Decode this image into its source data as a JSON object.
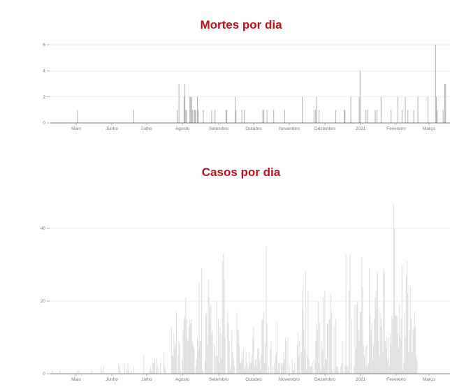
{
  "colors": {
    "title": "#b5121b",
    "deaths_bar": "#b3b3b3",
    "cases_bar": "#dedede",
    "grid": "#e6e6e6"
  },
  "chart_data": [
    {
      "type": "bar",
      "title": "Mortes por dia",
      "x_tick_labels": [
        "Maio",
        "Junho",
        "Julho",
        "Agosto",
        "Setembro",
        "Outubro",
        "Novembro",
        "Dezembro",
        "2021",
        "Fevereiro",
        "Março"
      ],
      "y_ticks": [
        0,
        2,
        4,
        6
      ],
      "ylim": [
        0,
        6
      ],
      "grid": true,
      "values": [
        0,
        0,
        0,
        0,
        0,
        0,
        0,
        0,
        0,
        0,
        0,
        0,
        0,
        0,
        0,
        0,
        0,
        0,
        0,
        0,
        0,
        0,
        0,
        0,
        0,
        0,
        0,
        0,
        0,
        0,
        0,
        0,
        1,
        0,
        0,
        0,
        0,
        0,
        0,
        0,
        0,
        0,
        0,
        0,
        0,
        0,
        0,
        0,
        0,
        0,
        0,
        0,
        0,
        0,
        0,
        0,
        0,
        0,
        0,
        0,
        0,
        0,
        0,
        0,
        0,
        0,
        0,
        0,
        0,
        0,
        0,
        0,
        0,
        0,
        0,
        0,
        0,
        0,
        0,
        0,
        0,
        0,
        0,
        0,
        0,
        0,
        0,
        0,
        0,
        0,
        0,
        0,
        0,
        0,
        0,
        0,
        0,
        0,
        0,
        1,
        0,
        0,
        0,
        0,
        0,
        0,
        0,
        0,
        0,
        0,
        0,
        0,
        0,
        0,
        0,
        0,
        0,
        0,
        0,
        0,
        0,
        0,
        0,
        0,
        0,
        0,
        0,
        0,
        0,
        0,
        0,
        0,
        0,
        0,
        0,
        0,
        0,
        0,
        0,
        0,
        0,
        0,
        0,
        0,
        0,
        0,
        0,
        0,
        0,
        0,
        0,
        1,
        0,
        3,
        0,
        0,
        0,
        0,
        0,
        2,
        3,
        1,
        1,
        0,
        0,
        0,
        2,
        2,
        2,
        1,
        0,
        1,
        1,
        1,
        0,
        2,
        1,
        0,
        0,
        0,
        0,
        0,
        1,
        0,
        0,
        0,
        0,
        0,
        0,
        0,
        0,
        0,
        1,
        0,
        0,
        0,
        1,
        0,
        0,
        0,
        0,
        0,
        0,
        0,
        0,
        0,
        0,
        0,
        0,
        1,
        1,
        0,
        0,
        0,
        0,
        0,
        0,
        0,
        0,
        0,
        2,
        1,
        0,
        0,
        0,
        0,
        0,
        0,
        1,
        0,
        0,
        1,
        0,
        0,
        0,
        0,
        0,
        0,
        0,
        0,
        0,
        0,
        0,
        0,
        0,
        0,
        0,
        0,
        0,
        0,
        0,
        0,
        0,
        1,
        1,
        0,
        0,
        0,
        1,
        0,
        0,
        0,
        0,
        0,
        0,
        0,
        1,
        0,
        0,
        0,
        0,
        0,
        0,
        0,
        0,
        0,
        0,
        0,
        0,
        1,
        0,
        0,
        0,
        0,
        0,
        0,
        0,
        0,
        0,
        0,
        0,
        0,
        0,
        0,
        0,
        0,
        0,
        0,
        0,
        0,
        2,
        0,
        0,
        0,
        0,
        0,
        0,
        0,
        0,
        0,
        0,
        0,
        0,
        0,
        1,
        0,
        1,
        2,
        0,
        0,
        1,
        0,
        0,
        0,
        0,
        0,
        0,
        0,
        0,
        0,
        0,
        0,
        0,
        0,
        0,
        0,
        0,
        0,
        0,
        0,
        1,
        0,
        0,
        0,
        0,
        0,
        0,
        0,
        0,
        0,
        1,
        1,
        0,
        0,
        0,
        0,
        0,
        0,
        2,
        0,
        0,
        0,
        0,
        0,
        0,
        0,
        0,
        0,
        2,
        4,
        0,
        0,
        0,
        0,
        0,
        0,
        1,
        0,
        1,
        0,
        0,
        0,
        0,
        0,
        0,
        0,
        0,
        1,
        0,
        1,
        0,
        0,
        0,
        0,
        2,
        0,
        0,
        0,
        0,
        0,
        0,
        0,
        0,
        0,
        0,
        0,
        1,
        0,
        0,
        0,
        0,
        0,
        0,
        0,
        2,
        0,
        0,
        0,
        0,
        1,
        0,
        0,
        0,
        2,
        0,
        0,
        1,
        0,
        0,
        0,
        0,
        0,
        0,
        1,
        0,
        0,
        0,
        0,
        2,
        0,
        0,
        0,
        0,
        0,
        0,
        0,
        0,
        0,
        0,
        0,
        2,
        0,
        0,
        0,
        0,
        0,
        0,
        0,
        0,
        6,
        2,
        1,
        0,
        0,
        0,
        0,
        0,
        0,
        1,
        0,
        3,
        3,
        0
      ]
    },
    {
      "type": "bar",
      "title": "Casos por dia",
      "x_tick_labels": [
        "Maio",
        "Junho",
        "Julho",
        "Agosto",
        "Setembro",
        "Outubro",
        "Novembro",
        "Dezembro",
        "2021",
        "Fevereiro",
        "Março"
      ],
      "y_ticks": [
        0,
        20,
        40
      ],
      "ylim": [
        0,
        40
      ],
      "grid": true,
      "values": [
        0,
        0,
        1,
        0,
        0,
        0,
        0,
        0,
        0,
        0,
        0,
        1,
        0,
        0,
        0,
        0,
        0,
        0,
        0,
        0,
        0,
        0,
        0,
        0,
        0,
        0,
        0,
        0,
        0,
        0,
        0,
        0,
        1,
        0,
        1,
        0,
        0,
        0,
        0,
        0,
        0,
        0,
        0,
        0,
        0,
        0,
        0,
        0,
        0,
        1,
        0,
        0,
        0,
        0,
        0,
        0,
        0,
        0,
        0,
        0,
        2,
        1,
        0,
        2,
        0,
        0,
        0,
        0,
        0,
        0,
        0,
        0,
        0,
        0,
        0,
        0,
        0,
        0,
        0,
        0,
        0,
        3,
        2,
        1,
        0,
        0,
        0,
        0,
        3,
        0,
        1,
        0,
        3,
        1,
        0,
        0,
        1,
        0,
        0,
        2,
        0,
        0,
        0,
        0,
        0,
        0,
        0,
        0,
        0,
        0,
        0,
        5,
        0,
        0,
        0,
        0,
        0,
        0,
        1,
        2,
        1,
        0,
        3,
        3,
        4,
        0,
        4,
        2,
        0,
        2,
        0,
        3,
        0,
        0,
        0,
        6,
        2,
        1,
        0,
        0,
        0,
        0,
        0,
        0,
        13,
        5,
        5,
        11,
        7,
        8,
        17,
        0,
        5,
        9,
        8,
        1,
        0,
        4,
        12,
        15,
        16,
        21,
        15,
        10,
        9,
        13,
        15,
        14,
        15,
        9,
        8,
        7,
        0,
        2,
        4,
        10,
        7,
        25,
        9,
        9,
        29,
        1,
        1,
        0,
        4,
        16,
        17,
        8,
        26,
        21,
        15,
        19,
        11,
        12,
        0,
        8,
        0,
        5,
        20,
        5,
        15,
        3,
        13,
        11,
        4,
        31,
        33,
        26,
        10,
        0,
        0,
        17,
        14,
        9,
        1,
        2,
        12,
        6,
        4,
        2,
        0,
        0,
        17,
        12,
        12,
        8,
        3,
        3,
        6,
        4,
        7,
        1,
        2,
        6,
        3,
        1,
        2,
        6,
        3,
        3,
        5,
        10,
        13,
        2,
        4,
        4,
        2,
        7,
        7,
        4,
        1,
        5,
        15,
        15,
        17,
        3,
        8,
        35,
        14,
        0,
        2,
        0,
        7,
        9,
        0,
        2,
        0,
        3,
        5,
        6,
        14,
        1,
        3,
        3,
        0,
        3,
        2,
        3,
        6,
        4,
        10,
        9,
        0,
        10,
        0,
        2,
        0,
        0,
        4,
        1,
        1,
        3,
        0,
        0,
        8,
        11,
        5,
        9,
        0,
        6,
        23,
        18,
        12,
        7,
        28,
        1,
        5,
        23,
        4,
        2,
        2,
        2,
        3,
        0,
        4,
        0,
        9,
        14,
        12,
        20,
        3,
        14,
        1,
        9,
        7,
        21,
        2,
        23,
        4,
        4,
        14,
        0,
        15,
        15,
        22,
        17,
        1,
        0,
        13,
        1,
        15,
        2,
        2,
        1,
        0,
        0,
        2,
        3,
        9,
        1,
        0,
        2,
        33,
        2,
        2,
        1,
        23,
        33,
        0,
        15,
        0,
        0,
        2,
        19,
        7,
        19,
        20,
        12,
        9,
        17,
        17,
        32,
        24,
        8,
        5,
        7,
        2,
        8,
        2,
        3,
        29,
        16,
        12,
        14,
        4,
        8,
        15,
        21,
        23,
        18,
        28,
        9,
        5,
        17,
        13,
        15,
        6,
        29,
        28,
        9,
        7,
        10,
        4,
        10,
        2,
        11,
        8,
        16,
        15,
        47,
        40,
        16,
        16,
        16,
        11,
        7,
        19,
        10,
        15,
        30,
        1,
        3,
        17,
        10,
        27,
        31,
        22,
        6,
        12,
        24,
        15,
        6,
        12,
        13,
        17,
        13,
        5,
        4,
        0
      ]
    }
  ]
}
